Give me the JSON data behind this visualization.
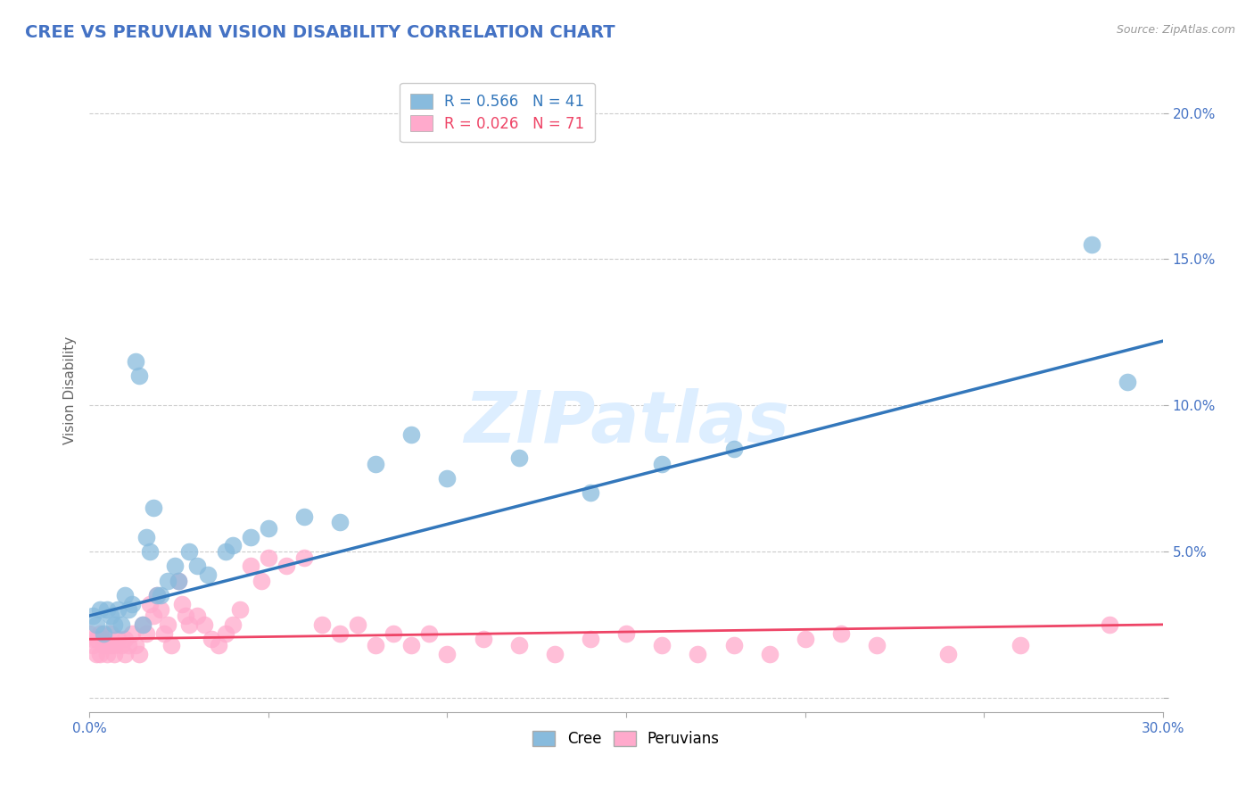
{
  "title": "CREE VS PERUVIAN VISION DISABILITY CORRELATION CHART",
  "source": "Source: ZipAtlas.com",
  "ylabel": "Vision Disability",
  "xlim": [
    0.0,
    0.3
  ],
  "ylim": [
    -0.005,
    0.215
  ],
  "xticks": [
    0.0,
    0.05,
    0.1,
    0.15,
    0.2,
    0.25,
    0.3
  ],
  "yticks": [
    0.0,
    0.05,
    0.1,
    0.15,
    0.2
  ],
  "xticklabels": [
    "0.0%",
    "",
    "",
    "",
    "",
    "",
    "30.0%"
  ],
  "yticklabels": [
    "",
    "5.0%",
    "10.0%",
    "15.0%",
    "20.0%"
  ],
  "cree_color": "#88bbdd",
  "peruvian_color": "#ffaacc",
  "cree_line_color": "#3377bb",
  "peruvian_line_color": "#ee4466",
  "cree_R": 0.566,
  "cree_N": 41,
  "peruvian_R": 0.026,
  "peruvian_N": 71,
  "background_color": "#ffffff",
  "grid_color": "#cccccc",
  "title_color": "#4472c4",
  "watermark_color": "#ddeeff",
  "cree_x": [
    0.001,
    0.002,
    0.003,
    0.004,
    0.005,
    0.006,
    0.007,
    0.008,
    0.009,
    0.01,
    0.011,
    0.012,
    0.013,
    0.014,
    0.015,
    0.016,
    0.017,
    0.018,
    0.019,
    0.02,
    0.022,
    0.024,
    0.025,
    0.028,
    0.03,
    0.033,
    0.038,
    0.04,
    0.045,
    0.05,
    0.06,
    0.07,
    0.08,
    0.09,
    0.1,
    0.12,
    0.14,
    0.16,
    0.18,
    0.28,
    0.29
  ],
  "cree_y": [
    0.028,
    0.025,
    0.03,
    0.022,
    0.03,
    0.028,
    0.025,
    0.03,
    0.025,
    0.035,
    0.03,
    0.032,
    0.115,
    0.11,
    0.025,
    0.055,
    0.05,
    0.065,
    0.035,
    0.035,
    0.04,
    0.045,
    0.04,
    0.05,
    0.045,
    0.042,
    0.05,
    0.052,
    0.055,
    0.058,
    0.062,
    0.06,
    0.08,
    0.09,
    0.075,
    0.082,
    0.07,
    0.08,
    0.085,
    0.155,
    0.108
  ],
  "peruvian_x": [
    0.0,
    0.001,
    0.001,
    0.002,
    0.002,
    0.003,
    0.003,
    0.004,
    0.004,
    0.005,
    0.005,
    0.006,
    0.006,
    0.007,
    0.007,
    0.008,
    0.009,
    0.01,
    0.01,
    0.011,
    0.012,
    0.013,
    0.014,
    0.015,
    0.016,
    0.017,
    0.018,
    0.019,
    0.02,
    0.021,
    0.022,
    0.023,
    0.025,
    0.026,
    0.027,
    0.028,
    0.03,
    0.032,
    0.034,
    0.036,
    0.038,
    0.04,
    0.042,
    0.045,
    0.048,
    0.05,
    0.055,
    0.06,
    0.065,
    0.07,
    0.075,
    0.08,
    0.085,
    0.09,
    0.095,
    0.1,
    0.11,
    0.12,
    0.13,
    0.14,
    0.15,
    0.16,
    0.17,
    0.18,
    0.19,
    0.2,
    0.21,
    0.22,
    0.24,
    0.26,
    0.285
  ],
  "peruvian_y": [
    0.022,
    0.02,
    0.018,
    0.02,
    0.015,
    0.022,
    0.015,
    0.018,
    0.02,
    0.018,
    0.015,
    0.018,
    0.022,
    0.018,
    0.015,
    0.02,
    0.018,
    0.02,
    0.015,
    0.018,
    0.022,
    0.018,
    0.015,
    0.025,
    0.022,
    0.032,
    0.028,
    0.035,
    0.03,
    0.022,
    0.025,
    0.018,
    0.04,
    0.032,
    0.028,
    0.025,
    0.028,
    0.025,
    0.02,
    0.018,
    0.022,
    0.025,
    0.03,
    0.045,
    0.04,
    0.048,
    0.045,
    0.048,
    0.025,
    0.022,
    0.025,
    0.018,
    0.022,
    0.018,
    0.022,
    0.015,
    0.02,
    0.018,
    0.015,
    0.02,
    0.022,
    0.018,
    0.015,
    0.018,
    0.015,
    0.02,
    0.022,
    0.018,
    0.015,
    0.018,
    0.025
  ]
}
